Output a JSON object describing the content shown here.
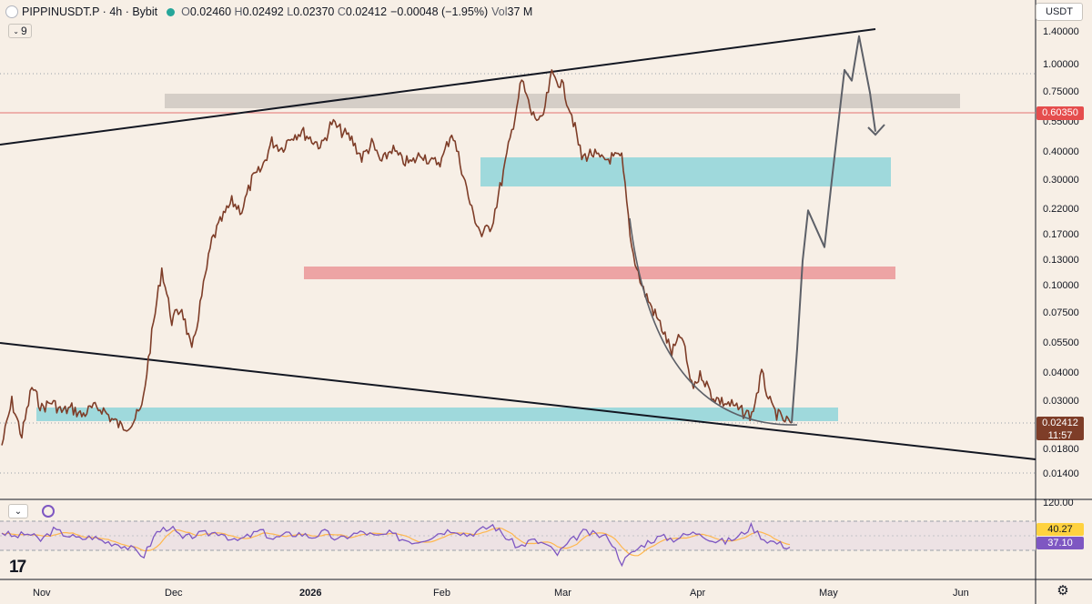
{
  "legend": {
    "symbol_line": "PIPPINUSDT.P · 4h · Bybit",
    "open_label": "O",
    "open": "0.02460",
    "high_label": "H",
    "high": "0.02492",
    "low_label": "L",
    "low": "0.02370",
    "close_label": "C",
    "close": "0.02412",
    "change": "−0.00048 (−1.95%)",
    "volume_label": "Vol",
    "volume": "37 M"
  },
  "indicator_badge": {
    "count": "9"
  },
  "currency": "USDT",
  "price_axis": {
    "scale": "log",
    "labels": [
      "1.40000",
      "1.00000",
      "0.75000",
      "0.55000",
      "0.40000",
      "0.30000",
      "0.22000",
      "0.17000",
      "0.13000",
      "0.10000",
      "0.07500",
      "0.05500",
      "0.04000",
      "0.03000",
      "0.01800",
      "0.01400"
    ]
  },
  "price_tags": {
    "horizontal_line": "0.60350",
    "last_price": "0.02412",
    "countdown": "11:57"
  },
  "rsi_axis": {
    "top": "120.00"
  },
  "rsi_tags": {
    "ma": "40.27",
    "rsi": "37.10"
  },
  "time_axis": {
    "labels": [
      "Nov",
      "Dec",
      "2026",
      "Feb",
      "Mar",
      "Apr",
      "May",
      "Jun"
    ]
  },
  "colors": {
    "background": "#f7efe6",
    "candles": "#7e3d28",
    "cyan_zone": "#9fd9dc",
    "red_zone": "#eda4a4",
    "gray_zone": "#d5cec7",
    "projection": "#5d6068",
    "rsi_line": "#7e57c2",
    "rsi_ma": "#ffb74d",
    "hline": "#e57373"
  },
  "chart_data": {
    "type": "line",
    "title": "PIPPINUSDT.P · 4h · Bybit",
    "y_scale": "log",
    "ylim": [
      0.0125,
      1.6
    ],
    "series": [
      {
        "values": [
          0.019,
          0.03,
          0.021,
          0.035,
          0.028,
          0.03,
          0.027,
          0.028,
          0.026,
          0.028,
          0.028,
          0.025,
          0.023,
          0.024,
          0.028,
          0.06,
          0.12,
          0.07,
          0.08,
          0.05,
          0.09,
          0.16,
          0.2,
          0.24,
          0.22,
          0.3,
          0.34,
          0.45,
          0.42,
          0.48,
          0.5,
          0.46,
          0.43,
          0.55,
          0.5,
          0.46,
          0.38,
          0.44,
          0.36,
          0.42,
          0.37,
          0.36,
          0.4,
          0.36,
          0.37,
          0.5,
          0.34,
          0.22,
          0.17,
          0.19,
          0.3,
          0.5,
          0.85,
          0.6,
          0.55,
          0.9,
          0.82,
          0.6,
          0.38,
          0.4,
          0.37,
          0.38,
          0.38,
          0.15,
          0.1,
          0.08,
          0.065,
          0.05,
          0.06,
          0.035,
          0.04,
          0.032,
          0.03,
          0.029,
          0.027,
          0.026,
          0.04,
          0.028,
          0.025,
          0.024
        ]
      },
      {
        "values": [
          0.024,
          0.052,
          0.13,
          0.22,
          0.15,
          0.3,
          0.95,
          0.85,
          1.35,
          0.75,
          0.5
        ]
      }
    ],
    "zones": [
      {
        "color": "gray",
        "range": [
          0.66,
          0.78
        ]
      },
      {
        "color": "cyan",
        "range": [
          0.29,
          0.385
        ]
      },
      {
        "color": "red",
        "range": [
          0.107,
          0.125
        ]
      },
      {
        "color": "cyan",
        "range": [
          0.0243,
          0.0288
        ]
      }
    ],
    "horizontal_line": 0.6035,
    "rsi": {
      "ylim": [
        0,
        120
      ],
      "bands": [
        30,
        70
      ],
      "values": [
        62,
        55,
        60,
        50,
        65,
        58,
        52,
        55,
        48,
        45,
        38,
        28,
        62,
        70,
        52,
        58,
        60,
        62,
        48,
        55,
        64,
        52,
        58,
        60,
        55,
        62,
        50,
        58,
        62,
        55,
        60,
        52,
        48,
        54,
        62,
        66,
        58,
        64,
        72,
        55,
        40,
        50,
        45,
        30,
        48,
        62,
        58,
        54,
        18,
        35,
        48,
        55,
        52,
        58,
        62,
        50,
        48,
        55,
        70,
        52,
        46,
        40
      ]
    }
  }
}
